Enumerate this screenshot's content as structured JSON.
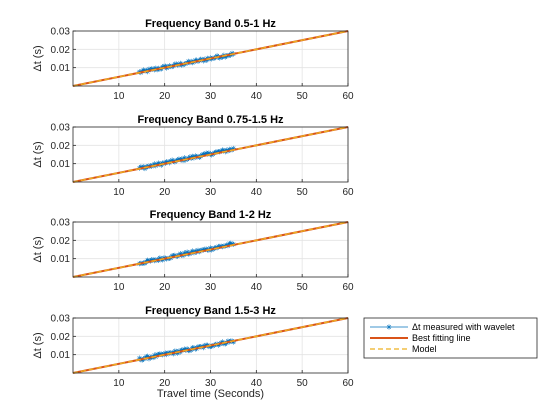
{
  "chart_data": [
    {
      "type": "line",
      "title": "Frequency Band 0.5-1 Hz",
      "xlabel": "",
      "ylabel": "Δt  (s)",
      "xlim": [
        0,
        60
      ],
      "ylim": [
        0,
        0.03
      ],
      "xticks": [
        "10",
        "20",
        "30",
        "40",
        "50",
        "60"
      ],
      "yticks": [
        "0.01",
        "0.02",
        "0.03"
      ],
      "grid": true,
      "series": [
        {
          "name": "Δt  measured  with  wavelet",
          "kind": "measured",
          "x_range": [
            14.5,
            35
          ],
          "y_range": [
            0.0075,
            0.0175
          ],
          "color": "#0072BD"
        },
        {
          "name": "Best fitting line",
          "kind": "fit",
          "x": [
            0,
            60
          ],
          "y": [
            0,
            0.03
          ],
          "color": "#D95319"
        },
        {
          "name": "Model",
          "kind": "model",
          "x": [
            0,
            60
          ],
          "y": [
            0,
            0.03
          ],
          "color": "#EDB120"
        }
      ]
    },
    {
      "type": "line",
      "title": "Frequency Band 0.75-1.5 Hz",
      "xlabel": "",
      "ylabel": "Δt  (s)",
      "xlim": [
        0,
        60
      ],
      "ylim": [
        0,
        0.03
      ],
      "xticks": [
        "10",
        "20",
        "30",
        "40",
        "50",
        "60"
      ],
      "yticks": [
        "0.01",
        "0.02",
        "0.03"
      ],
      "grid": true,
      "series": [
        {
          "name": "Δt  measured  with  wavelet",
          "kind": "measured",
          "x_range": [
            14.5,
            35
          ],
          "y_range": [
            0.0075,
            0.018
          ],
          "color": "#0072BD"
        },
        {
          "name": "Best fitting line",
          "kind": "fit",
          "x": [
            0,
            60
          ],
          "y": [
            0,
            0.03
          ],
          "color": "#D95319"
        },
        {
          "name": "Model",
          "kind": "model",
          "x": [
            0,
            60
          ],
          "y": [
            0,
            0.03
          ],
          "color": "#EDB120"
        }
      ]
    },
    {
      "type": "line",
      "title": "Frequency Band 1-2 Hz",
      "xlabel": "",
      "ylabel": "Δt  (s)",
      "xlim": [
        0,
        60
      ],
      "ylim": [
        0,
        0.03
      ],
      "xticks": [
        "10",
        "20",
        "30",
        "40",
        "50",
        "60"
      ],
      "yticks": [
        "0.01",
        "0.02",
        "0.03"
      ],
      "grid": true,
      "series": [
        {
          "name": "Δt  measured  with  wavelet",
          "kind": "measured",
          "x_range": [
            14.5,
            35
          ],
          "y_range": [
            0.0075,
            0.018
          ],
          "color": "#0072BD"
        },
        {
          "name": "Best fitting line",
          "kind": "fit",
          "x": [
            0,
            60
          ],
          "y": [
            0,
            0.03
          ],
          "color": "#D95319"
        },
        {
          "name": "Model",
          "kind": "model",
          "x": [
            0,
            60
          ],
          "y": [
            0,
            0.03
          ],
          "color": "#EDB120"
        }
      ]
    },
    {
      "type": "line",
      "title": "Frequency Band 1.5-3 Hz",
      "xlabel": "Travel time (Seconds)",
      "ylabel": "Δt  (s)",
      "xlim": [
        0,
        60
      ],
      "ylim": [
        0,
        0.03
      ],
      "xticks": [
        "10",
        "20",
        "30",
        "40",
        "50",
        "60"
      ],
      "yticks": [
        "0.01",
        "0.02",
        "0.03"
      ],
      "grid": true,
      "series": [
        {
          "name": "Δt  measured  with  wavelet",
          "kind": "measured",
          "x_range": [
            14.5,
            35
          ],
          "y_range": [
            0.0075,
            0.0175
          ],
          "color": "#0072BD"
        },
        {
          "name": "Best fitting line",
          "kind": "fit",
          "x": [
            0,
            60
          ],
          "y": [
            0,
            0.03
          ],
          "color": "#D95319"
        },
        {
          "name": "Model",
          "kind": "model",
          "x": [
            0,
            60
          ],
          "y": [
            0,
            0.03
          ],
          "color": "#EDB120"
        }
      ]
    }
  ],
  "legend": {
    "placement": "right of bottom subplot",
    "entries": [
      {
        "label": "Δt  measured  with  wavelet",
        "kind": "measured",
        "color": "#0072BD"
      },
      {
        "label": "Best fitting line",
        "kind": "fit",
        "color": "#D95319"
      },
      {
        "label": "Model",
        "kind": "model",
        "color": "#EDB120"
      }
    ]
  }
}
